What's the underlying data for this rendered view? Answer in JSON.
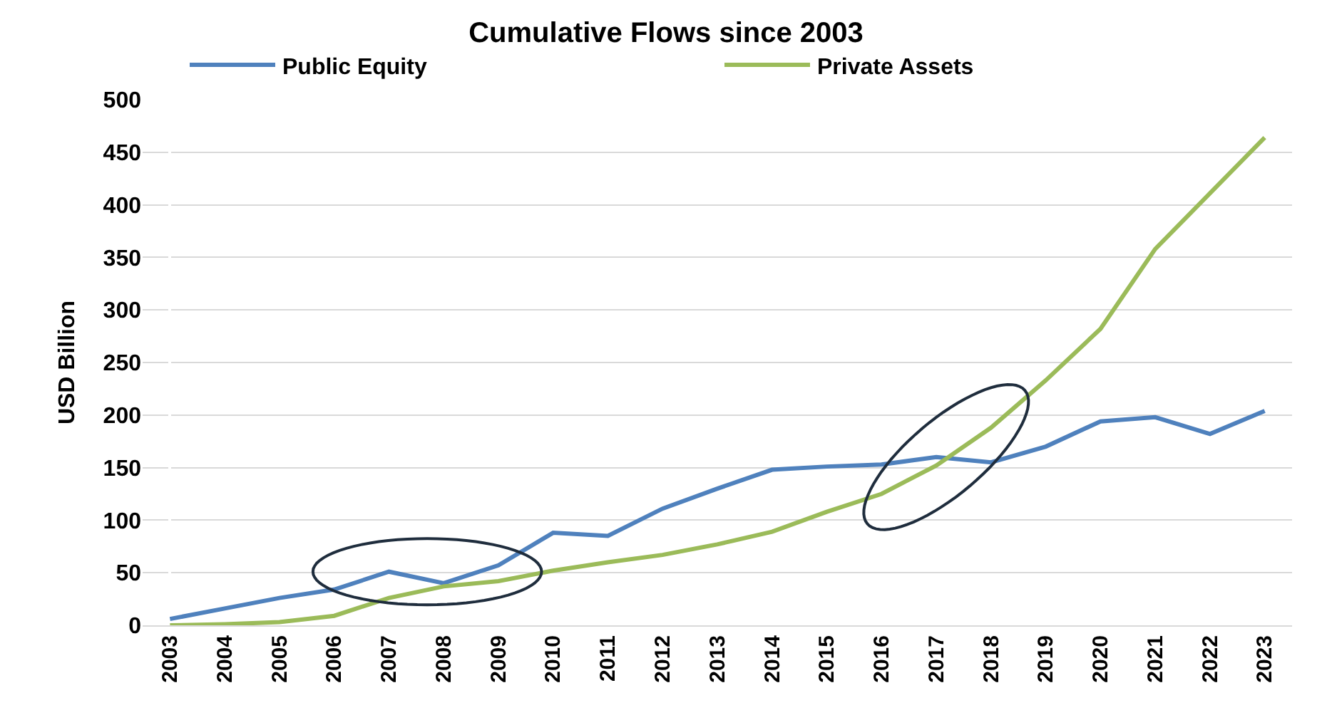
{
  "chart_data": {
    "type": "line",
    "title": "Cumulative Flows since 2003",
    "ylabel": "USD Billion",
    "categories": [
      "2003",
      "2004",
      "2005",
      "2006",
      "2007",
      "2008",
      "2009",
      "2010",
      "2011",
      "2012",
      "2013",
      "2014",
      "2015",
      "2016",
      "2017",
      "2018",
      "2019",
      "2020",
      "2021",
      "2022",
      "2023"
    ],
    "series": [
      {
        "name": "Public Equity",
        "color": "#4f81bd",
        "values": [
          6,
          16,
          26,
          34,
          51,
          40,
          57,
          88,
          85,
          111,
          130,
          148,
          151,
          153,
          160,
          155,
          170,
          194,
          198,
          182,
          204
        ]
      },
      {
        "name": "Private Assets",
        "color": "#9bbb59",
        "values": [
          0,
          1,
          3,
          9,
          26,
          37,
          42,
          52,
          60,
          67,
          77,
          89,
          108,
          125,
          152,
          188,
          233,
          282,
          358,
          411,
          464
        ]
      }
    ],
    "ylim": [
      0,
      500
    ],
    "yticks": [
      0,
      50,
      100,
      150,
      200,
      250,
      300,
      350,
      400,
      450,
      500
    ],
    "grid": "y",
    "legend": "top",
    "marker": "none",
    "line_style": "solid"
  }
}
